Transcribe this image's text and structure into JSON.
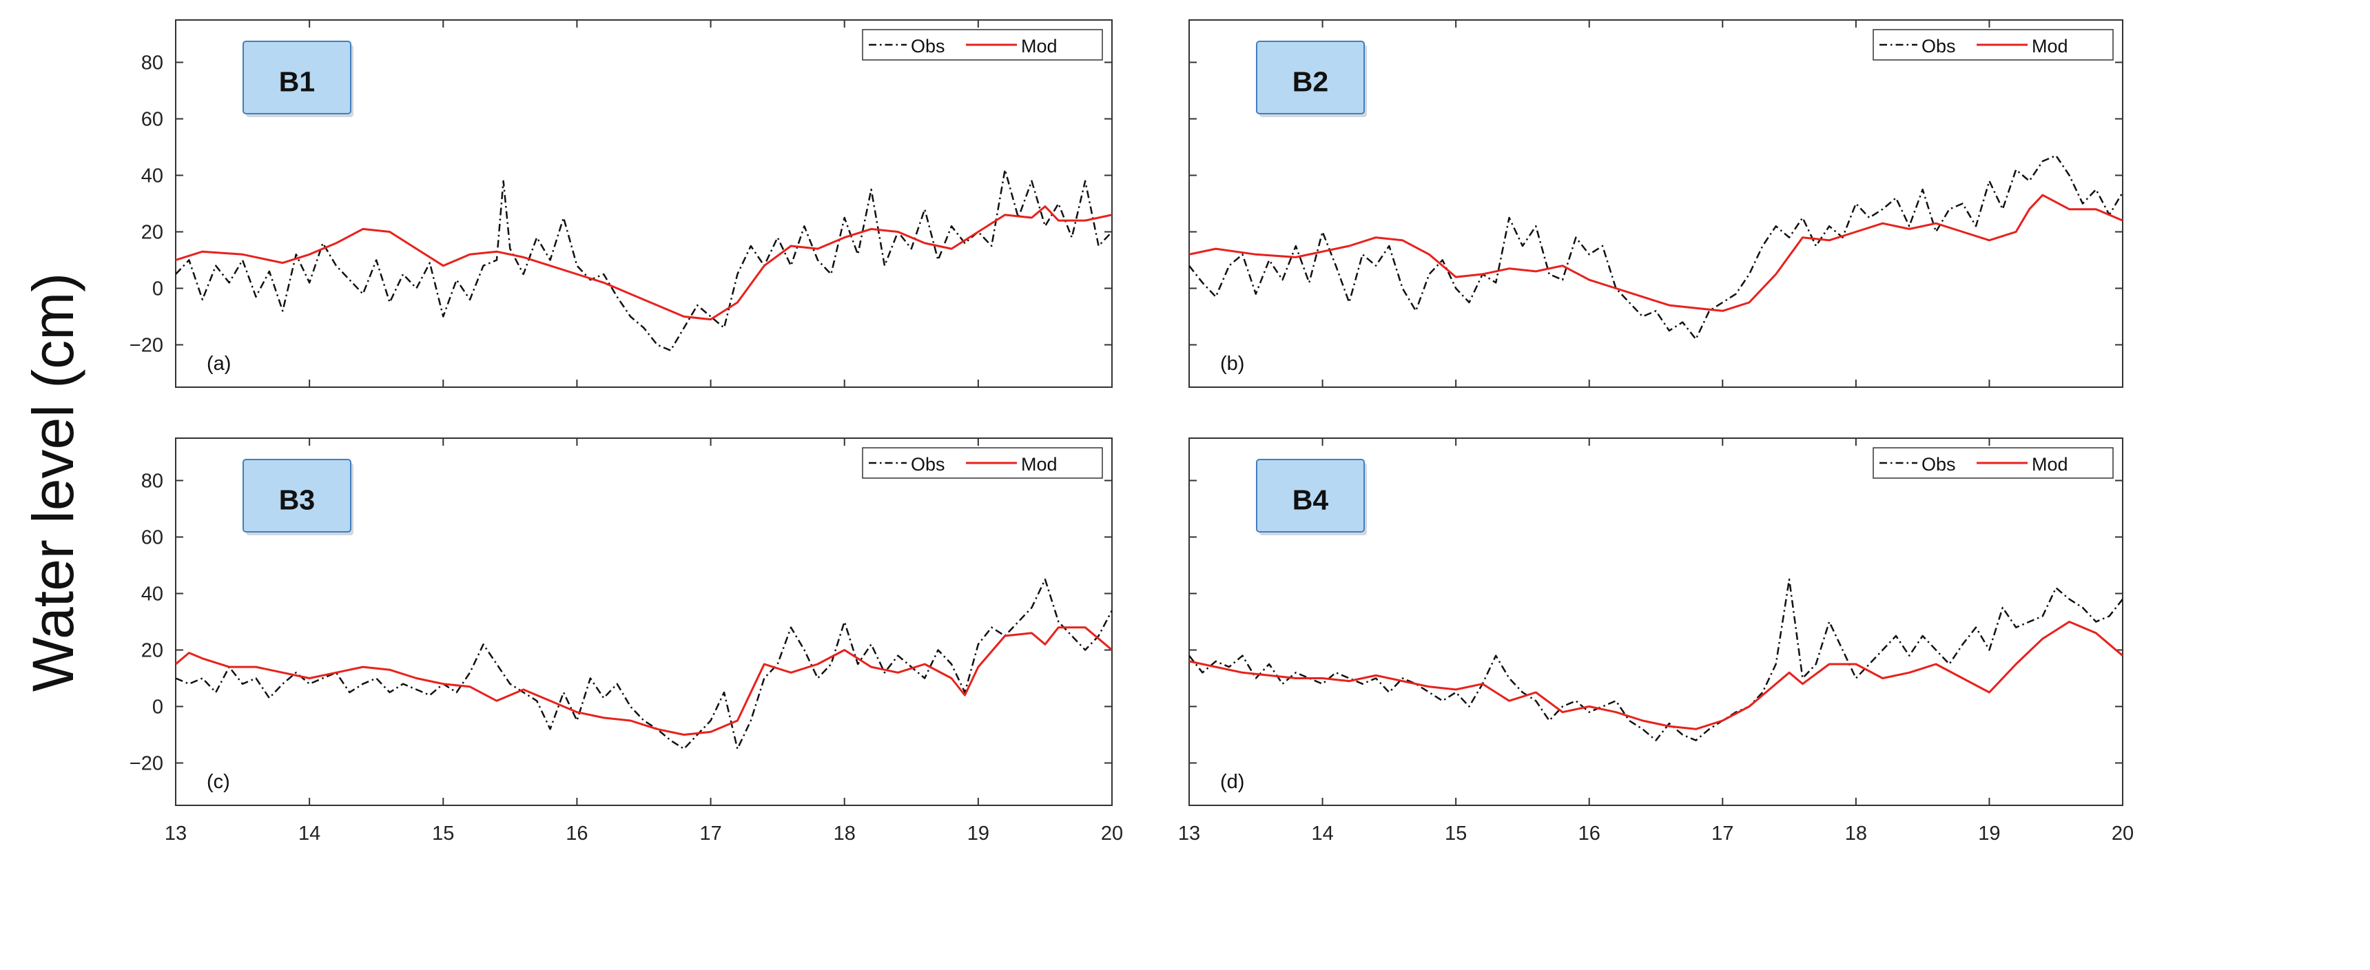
{
  "figure": {
    "ylabel": "Water level  (cm)",
    "legend_labels": {
      "obs": "Obs",
      "mod": "Mod"
    },
    "colors": {
      "obs": "#111111",
      "mod": "#e8211c",
      "box_fill": "#b7d8f2",
      "box_stroke": "#3f7fbf",
      "axis": "#333333"
    }
  },
  "chart_data": [
    {
      "type": "line",
      "panel": "(a)",
      "site": "B1",
      "xlabel": "",
      "ylabel": "Water level  (cm)",
      "xlim": [
        13,
        20
      ],
      "ylim": [
        -35,
        95
      ],
      "x_ticks": [
        13,
        14,
        15,
        16,
        17,
        18,
        19,
        20
      ],
      "y_ticks": [
        -20,
        0,
        20,
        40,
        60,
        80
      ],
      "legend": "top-right",
      "series": [
        {
          "name": "Obs",
          "style": "dashdot",
          "x": [
            13.0,
            13.1,
            13.2,
            13.3,
            13.4,
            13.5,
            13.6,
            13.7,
            13.8,
            13.9,
            14.0,
            14.1,
            14.2,
            14.3,
            14.4,
            14.5,
            14.6,
            14.7,
            14.8,
            14.9,
            15.0,
            15.1,
            15.2,
            15.3,
            15.4,
            15.45,
            15.5,
            15.6,
            15.7,
            15.8,
            15.9,
            16.0,
            16.1,
            16.2,
            16.3,
            16.4,
            16.5,
            16.6,
            16.7,
            16.8,
            16.9,
            17.0,
            17.1,
            17.2,
            17.3,
            17.4,
            17.5,
            17.6,
            17.7,
            17.8,
            17.9,
            18.0,
            18.1,
            18.2,
            18.3,
            18.4,
            18.5,
            18.6,
            18.7,
            18.8,
            18.9,
            19.0,
            19.1,
            19.2,
            19.3,
            19.4,
            19.5,
            19.6,
            19.7,
            19.8,
            19.9,
            20.0
          ],
          "y": [
            5,
            10,
            -4,
            8,
            2,
            10,
            -3,
            6,
            -8,
            12,
            2,
            16,
            8,
            3,
            -2,
            10,
            -5,
            5,
            0,
            9,
            -10,
            3,
            -4,
            8,
            10,
            38,
            14,
            5,
            18,
            10,
            25,
            8,
            3,
            5,
            -3,
            -10,
            -14,
            -20,
            -22,
            -14,
            -6,
            -10,
            -14,
            5,
            15,
            8,
            18,
            8,
            22,
            10,
            5,
            25,
            12,
            35,
            8,
            20,
            14,
            28,
            10,
            22,
            16,
            20,
            15,
            42,
            25,
            38,
            22,
            30,
            18,
            38,
            15,
            20
          ]
        },
        {
          "name": "Mod",
          "style": "solid",
          "x": [
            13.0,
            13.2,
            13.5,
            13.8,
            14.0,
            14.2,
            14.4,
            14.6,
            14.8,
            15.0,
            15.2,
            15.4,
            15.6,
            15.8,
            16.0,
            16.2,
            16.4,
            16.6,
            16.8,
            17.0,
            17.2,
            17.4,
            17.6,
            17.8,
            18.0,
            18.2,
            18.4,
            18.6,
            18.8,
            19.0,
            19.2,
            19.4,
            19.5,
            19.6,
            19.8,
            20.0
          ],
          "y": [
            10,
            13,
            12,
            9,
            12,
            16,
            21,
            20,
            14,
            8,
            12,
            13,
            11,
            8,
            5,
            2,
            -2,
            -6,
            -10,
            -11,
            -5,
            8,
            15,
            14,
            18,
            21,
            20,
            16,
            14,
            20,
            26,
            25,
            29,
            24,
            24,
            26
          ]
        }
      ]
    },
    {
      "type": "line",
      "panel": "(b)",
      "site": "B2",
      "xlabel": "",
      "ylabel": "",
      "xlim": [
        13,
        20
      ],
      "ylim": [
        -35,
        95
      ],
      "x_ticks": [
        13,
        14,
        15,
        16,
        17,
        18,
        19,
        20
      ],
      "y_ticks": [
        -20,
        0,
        20,
        40,
        60,
        80
      ],
      "legend": "top-right",
      "series": [
        {
          "name": "Obs",
          "style": "dashdot",
          "x": [
            13.0,
            13.1,
            13.2,
            13.3,
            13.4,
            13.5,
            13.6,
            13.7,
            13.8,
            13.9,
            14.0,
            14.1,
            14.2,
            14.3,
            14.4,
            14.5,
            14.6,
            14.7,
            14.8,
            14.9,
            15.0,
            15.1,
            15.2,
            15.3,
            15.4,
            15.5,
            15.6,
            15.7,
            15.8,
            15.9,
            16.0,
            16.1,
            16.2,
            16.3,
            16.4,
            16.5,
            16.6,
            16.7,
            16.8,
            16.9,
            17.0,
            17.1,
            17.2,
            17.3,
            17.4,
            17.5,
            17.6,
            17.7,
            17.8,
            17.9,
            18.0,
            18.1,
            18.2,
            18.3,
            18.4,
            18.5,
            18.6,
            18.7,
            18.8,
            18.9,
            19.0,
            19.1,
            19.2,
            19.3,
            19.4,
            19.5,
            19.6,
            19.7,
            19.8,
            19.9,
            20.0
          ],
          "y": [
            8,
            2,
            -3,
            8,
            12,
            -2,
            10,
            3,
            15,
            2,
            20,
            8,
            -5,
            12,
            8,
            15,
            0,
            -8,
            5,
            10,
            0,
            -5,
            5,
            2,
            25,
            15,
            22,
            5,
            3,
            18,
            12,
            15,
            0,
            -5,
            -10,
            -8,
            -15,
            -12,
            -18,
            -8,
            -5,
            -2,
            5,
            15,
            22,
            18,
            25,
            15,
            22,
            18,
            30,
            25,
            28,
            32,
            22,
            35,
            20,
            28,
            30,
            22,
            38,
            28,
            42,
            38,
            45,
            47,
            40,
            30,
            35,
            26,
            34
          ]
        },
        {
          "name": "Mod",
          "style": "solid",
          "x": [
            13.0,
            13.2,
            13.5,
            13.8,
            14.0,
            14.2,
            14.4,
            14.6,
            14.8,
            15.0,
            15.2,
            15.4,
            15.6,
            15.8,
            16.0,
            16.2,
            16.4,
            16.6,
            16.8,
            17.0,
            17.2,
            17.4,
            17.6,
            17.8,
            18.0,
            18.2,
            18.4,
            18.6,
            18.8,
            19.0,
            19.2,
            19.3,
            19.4,
            19.6,
            19.8,
            20.0
          ],
          "y": [
            12,
            14,
            12,
            11,
            13,
            15,
            18,
            17,
            12,
            4,
            5,
            7,
            6,
            8,
            3,
            0,
            -3,
            -6,
            -7,
            -8,
            -5,
            5,
            18,
            17,
            20,
            23,
            21,
            23,
            20,
            17,
            20,
            28,
            33,
            28,
            28,
            24
          ]
        }
      ]
    },
    {
      "type": "line",
      "panel": "(c)",
      "site": "B3",
      "xlabel": "",
      "ylabel": "Water level  (cm)",
      "xlim": [
        13,
        20
      ],
      "ylim": [
        -35,
        95
      ],
      "x_ticks": [
        13,
        14,
        15,
        16,
        17,
        18,
        19,
        20
      ],
      "y_ticks": [
        -20,
        0,
        20,
        40,
        60,
        80
      ],
      "legend": "top-right",
      "series": [
        {
          "name": "Obs",
          "style": "dashdot",
          "x": [
            13.0,
            13.1,
            13.2,
            13.3,
            13.4,
            13.5,
            13.6,
            13.7,
            13.8,
            13.9,
            14.0,
            14.1,
            14.2,
            14.3,
            14.4,
            14.5,
            14.6,
            14.7,
            14.8,
            14.9,
            15.0,
            15.1,
            15.2,
            15.3,
            15.4,
            15.5,
            15.6,
            15.7,
            15.8,
            15.9,
            16.0,
            16.1,
            16.2,
            16.3,
            16.4,
            16.5,
            16.6,
            16.7,
            16.8,
            16.9,
            17.0,
            17.1,
            17.2,
            17.3,
            17.4,
            17.5,
            17.6,
            17.7,
            17.8,
            17.9,
            18.0,
            18.1,
            18.2,
            18.3,
            18.4,
            18.5,
            18.6,
            18.7,
            18.8,
            18.9,
            19.0,
            19.1,
            19.2,
            19.3,
            19.4,
            19.5,
            19.6,
            19.7,
            19.8,
            19.9,
            20.0
          ],
          "y": [
            10,
            8,
            10,
            5,
            14,
            8,
            10,
            3,
            8,
            12,
            8,
            10,
            12,
            5,
            8,
            10,
            5,
            8,
            6,
            4,
            8,
            5,
            12,
            22,
            15,
            8,
            5,
            2,
            -8,
            5,
            -5,
            10,
            3,
            8,
            0,
            -5,
            -8,
            -12,
            -15,
            -10,
            -5,
            5,
            -15,
            -5,
            10,
            15,
            28,
            20,
            10,
            15,
            30,
            15,
            22,
            12,
            18,
            14,
            10,
            20,
            15,
            5,
            22,
            28,
            25,
            30,
            35,
            45,
            30,
            25,
            20,
            25,
            34
          ]
        },
        {
          "name": "Mod",
          "style": "solid",
          "x": [
            13.0,
            13.1,
            13.2,
            13.4,
            13.6,
            13.8,
            14.0,
            14.2,
            14.4,
            14.6,
            14.8,
            15.0,
            15.2,
            15.4,
            15.6,
            15.8,
            16.0,
            16.2,
            16.4,
            16.6,
            16.8,
            17.0,
            17.2,
            17.4,
            17.6,
            17.8,
            18.0,
            18.2,
            18.4,
            18.6,
            18.8,
            18.9,
            19.0,
            19.2,
            19.4,
            19.5,
            19.6,
            19.8,
            20.0
          ],
          "y": [
            15,
            19,
            17,
            14,
            14,
            12,
            10,
            12,
            14,
            13,
            10,
            8,
            7,
            2,
            6,
            2,
            -2,
            -4,
            -5,
            -8,
            -10,
            -9,
            -5,
            15,
            12,
            15,
            20,
            14,
            12,
            15,
            10,
            4,
            14,
            25,
            26,
            22,
            28,
            28,
            20
          ]
        }
      ]
    },
    {
      "type": "line",
      "panel": "(d)",
      "site": "B4",
      "xlabel": "",
      "ylabel": "",
      "xlim": [
        13,
        20
      ],
      "ylim": [
        -35,
        95
      ],
      "x_ticks": [
        13,
        14,
        15,
        16,
        17,
        18,
        19,
        20
      ],
      "y_ticks": [
        -20,
        0,
        20,
        40,
        60,
        80
      ],
      "legend": "top-right",
      "series": [
        {
          "name": "Obs",
          "style": "dashdot",
          "x": [
            13.0,
            13.1,
            13.2,
            13.3,
            13.4,
            13.5,
            13.6,
            13.7,
            13.8,
            13.9,
            14.0,
            14.1,
            14.2,
            14.3,
            14.4,
            14.5,
            14.6,
            14.7,
            14.8,
            14.9,
            15.0,
            15.1,
            15.2,
            15.3,
            15.4,
            15.5,
            15.6,
            15.7,
            15.8,
            15.9,
            16.0,
            16.1,
            16.2,
            16.3,
            16.4,
            16.5,
            16.6,
            16.7,
            16.8,
            16.9,
            17.0,
            17.1,
            17.2,
            17.3,
            17.4,
            17.5,
            17.6,
            17.7,
            17.8,
            17.9,
            18.0,
            18.1,
            18.2,
            18.3,
            18.4,
            18.5,
            18.6,
            18.7,
            18.8,
            18.9,
            19.0,
            19.1,
            19.2,
            19.3,
            19.4,
            19.5,
            19.6,
            19.7,
            19.8,
            19.9,
            20.0
          ],
          "y": [
            18,
            12,
            16,
            14,
            18,
            10,
            15,
            8,
            12,
            10,
            8,
            12,
            10,
            8,
            10,
            5,
            10,
            8,
            5,
            2,
            5,
            0,
            8,
            18,
            10,
            5,
            2,
            -5,
            0,
            2,
            -2,
            0,
            2,
            -5,
            -8,
            -12,
            -6,
            -10,
            -12,
            -8,
            -5,
            -2,
            0,
            5,
            15,
            45,
            10,
            15,
            30,
            20,
            10,
            15,
            20,
            25,
            18,
            25,
            20,
            15,
            22,
            28,
            20,
            35,
            28,
            30,
            32,
            42,
            38,
            35,
            30,
            32,
            38
          ]
        },
        {
          "name": "Mod",
          "style": "solid",
          "x": [
            13.0,
            13.2,
            13.4,
            13.6,
            13.8,
            14.0,
            14.2,
            14.4,
            14.6,
            14.8,
            15.0,
            15.2,
            15.4,
            15.6,
            15.8,
            16.0,
            16.2,
            16.4,
            16.6,
            16.8,
            17.0,
            17.2,
            17.4,
            17.5,
            17.6,
            17.8,
            18.0,
            18.2,
            18.4,
            18.6,
            18.8,
            19.0,
            19.2,
            19.4,
            19.6,
            19.8,
            20.0
          ],
          "y": [
            16,
            14,
            12,
            11,
            10,
            10,
            9,
            11,
            9,
            7,
            6,
            8,
            2,
            5,
            -2,
            0,
            -2,
            -5,
            -7,
            -8,
            -5,
            0,
            8,
            12,
            8,
            15,
            15,
            10,
            12,
            15,
            10,
            5,
            15,
            24,
            30,
            26,
            18
          ]
        }
      ]
    }
  ]
}
